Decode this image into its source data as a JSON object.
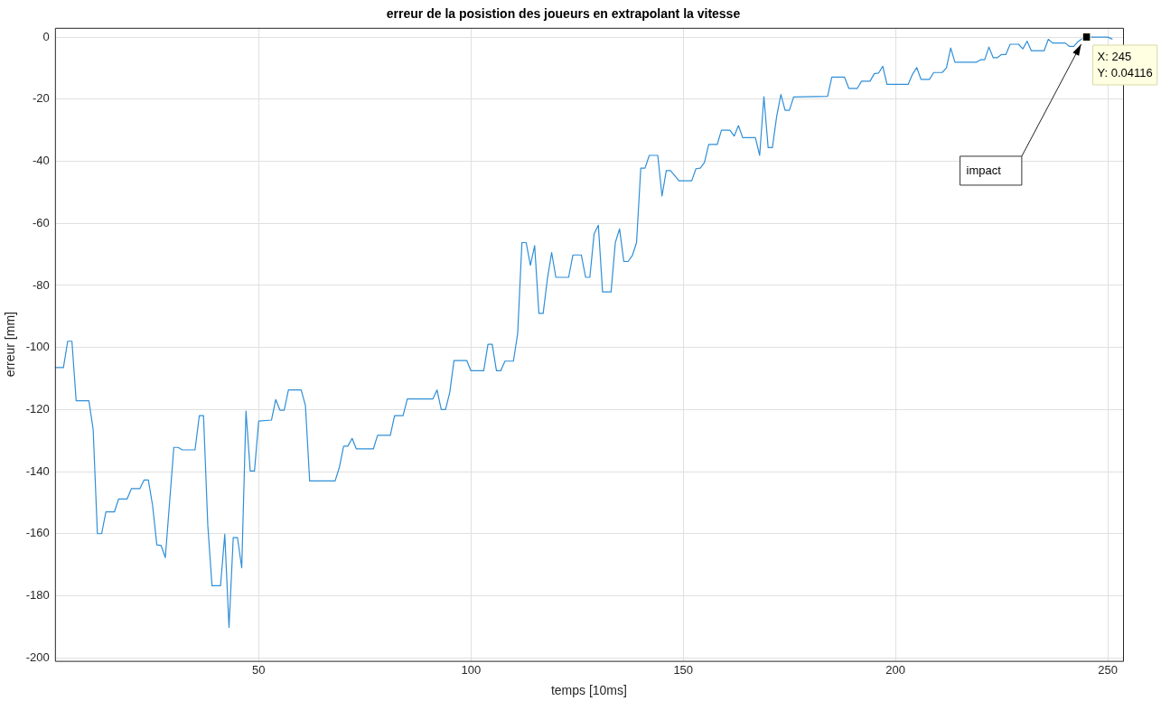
{
  "chart_data": {
    "type": "line",
    "title": "erreur de la posistion des joueurs en extrapolant la vitesse",
    "xlabel": "temps [10ms]",
    "ylabel": "erreur [mm]",
    "xlim": [
      2,
      253.6
    ],
    "xticks": [
      50,
      100,
      150,
      200,
      250
    ],
    "ylim": [
      -201,
      3
    ],
    "yticks": [
      -200,
      -180,
      -160,
      -140,
      -120,
      -100,
      -80,
      -60,
      -40,
      -20,
      0
    ],
    "grid": true,
    "marker": "none",
    "line_style": "solid",
    "series": [
      {
        "color": "#2f8fd8",
        "x": [
          2,
          4,
          5,
          6,
          7,
          10,
          11,
          12,
          13,
          14,
          16,
          17,
          19,
          20,
          22,
          23,
          24,
          25,
          26,
          27,
          28,
          30,
          31,
          32,
          35,
          36,
          37,
          38,
          39,
          41,
          42,
          43,
          44,
          45,
          46,
          47,
          48,
          49,
          50,
          53,
          54,
          55,
          56,
          57,
          60,
          61,
          62,
          68,
          69,
          70,
          71,
          72,
          73,
          77,
          78,
          81,
          82,
          84,
          85,
          91,
          92,
          93,
          94,
          95,
          96,
          99,
          100,
          103,
          104,
          105,
          106,
          107,
          108,
          110,
          111,
          112,
          113,
          114,
          115,
          116,
          117,
          118,
          119,
          120,
          123,
          124,
          126,
          127,
          128,
          129,
          130,
          131,
          133,
          134,
          135,
          136,
          137,
          138,
          139,
          140,
          141,
          142,
          144,
          145,
          146,
          147,
          149,
          152,
          153,
          154,
          155,
          156,
          158,
          159,
          161,
          162,
          163,
          164,
          167,
          168,
          169,
          170,
          171,
          172,
          173,
          174,
          175,
          176,
          184,
          185,
          188,
          189,
          191,
          192,
          194,
          195,
          196,
          197,
          198,
          203,
          204,
          205,
          206,
          208,
          209,
          211,
          212,
          213,
          214,
          219,
          220,
          221,
          222,
          223,
          224,
          225,
          226,
          227,
          229,
          230,
          231,
          232,
          235,
          236,
          237,
          240,
          241,
          242,
          243,
          244,
          245,
          247,
          250,
          251
        ],
        "values": [
          -106.5,
          -106.5,
          -98,
          -98,
          -117.2,
          -117.2,
          -126.4,
          -160,
          -160,
          -153,
          -153,
          -148.8,
          -148.8,
          -145.5,
          -145.5,
          -142.7,
          -142.7,
          -150.9,
          -163.6,
          -163.8,
          -167.7,
          -132.2,
          -132.2,
          -133,
          -133,
          -122,
          -122,
          -157.2,
          -176.8,
          -176.8,
          -160.2,
          -190.2,
          -161.3,
          -161.3,
          -171,
          -120.5,
          -139.8,
          -139.8,
          -123.7,
          -123.4,
          -116.8,
          -120.2,
          -120.2,
          -113.7,
          -113.7,
          -118.7,
          -143,
          -143,
          -138.6,
          -131.8,
          -131.8,
          -129.3,
          -132.7,
          -132.7,
          -128.3,
          -128.3,
          -122,
          -122,
          -116.6,
          -116.6,
          -113.7,
          -120,
          -120,
          -114.5,
          -104.2,
          -104.2,
          -107.5,
          -107.5,
          -99,
          -99,
          -107.5,
          -107.5,
          -104.4,
          -104.4,
          -95.5,
          -66.2,
          -66.2,
          -73.5,
          -67.2,
          -89,
          -89,
          -77.9,
          -69.4,
          -77.4,
          -77.4,
          -70.2,
          -70.2,
          -77.4,
          -77.4,
          -63.4,
          -60.6,
          -82.1,
          -82.1,
          -66.2,
          -61.8,
          -72.3,
          -72.3,
          -70.4,
          -66.2,
          -42.2,
          -42.2,
          -38.1,
          -38.1,
          -51.2,
          -43,
          -43,
          -46.3,
          -46.3,
          -42.4,
          -42.2,
          -40.4,
          -34.6,
          -34.6,
          -30,
          -30,
          -31.9,
          -28.5,
          -32.4,
          -32.4,
          -38.1,
          -19.2,
          -35.6,
          -35.6,
          -25.6,
          -18.5,
          -23.6,
          -23.6,
          -19.3,
          -19.1,
          -12.9,
          -12.9,
          -16.5,
          -16.5,
          -14.2,
          -14.2,
          -11.8,
          -11.6,
          -9.4,
          -15.2,
          -15.2,
          -12,
          -9.8,
          -13.6,
          -13.6,
          -11.4,
          -11.4,
          -9.9,
          -3.5,
          -8.1,
          -8.1,
          -7.3,
          -7.3,
          -3.2,
          -6.6,
          -6.6,
          -5.6,
          -5.6,
          -2.3,
          -2.3,
          -3.8,
          -1.3,
          -4.4,
          -4.4,
          -0.7,
          -1.9,
          -1.9,
          -3,
          -3,
          -1.4,
          -0.5,
          0.04116,
          0,
          0,
          -0.6
        ]
      }
    ],
    "annotations": [
      "impact",
      {
        "text": "X: 245",
        "x": 245,
        "y": 0.04116
      },
      {
        "text": "Y: 0.04116",
        "x": 245,
        "y": 0.04116
      }
    ]
  }
}
